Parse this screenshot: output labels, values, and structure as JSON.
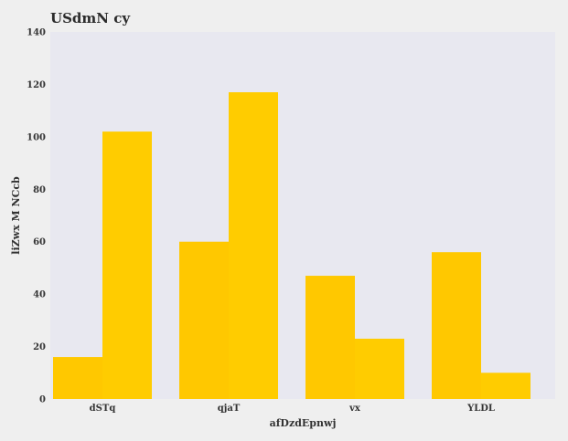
{
  "chart_data": {
    "type": "bar",
    "title": "USdmN cy",
    "xlabel": "afDzdEpnwj",
    "ylabel": "liZwx M NCcb",
    "categories": [
      "dSTq",
      "qjaT",
      "vx",
      "YLDL"
    ],
    "series": [
      {
        "values": [
          16,
          60,
          47,
          56
        ],
        "color": "#ffc800"
      },
      {
        "values": [
          102,
          117,
          23,
          10
        ],
        "color": "#ffcc00"
      }
    ],
    "ylim": [
      0,
      140
    ],
    "yticks": [
      0,
      20,
      40,
      60,
      80,
      100,
      120,
      140
    ],
    "grid": false,
    "legend": "none",
    "plot_background": "#e8e8f0",
    "page_background": "#efefef"
  }
}
